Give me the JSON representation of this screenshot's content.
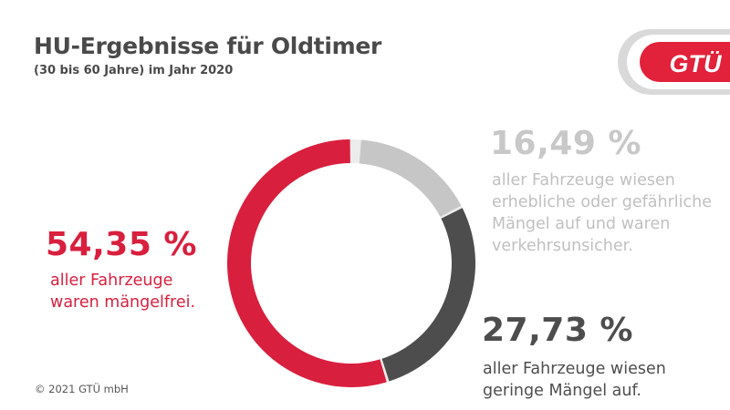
{
  "header": {
    "title": "HU-Ergebnisse für Oldtimer",
    "subtitle": "(30 bis 60 Jahre) im Jahr 2020"
  },
  "logo": {
    "text": "GTÜ"
  },
  "chart_data": {
    "type": "pie",
    "style": "donut",
    "title": "HU-Ergebnisse für Oldtimer",
    "subtitle": "(30 bis 60 Jahre) im Jahr 2020",
    "unit": "%",
    "slices": [
      {
        "value": 16.49,
        "label": "16,49 %",
        "color": "#c6c6c6",
        "description": [
          "aller Fahrzeuge wiesen",
          "erhebliche oder gefährliche",
          "Mängel auf und waren",
          "verkehrsunsicher."
        ]
      },
      {
        "value": 27.73,
        "label": "27,73 %",
        "color": "#4d4d4d",
        "description": [
          "aller Fahrzeuge wiesen",
          "geringe Mängel auf."
        ]
      },
      {
        "value": 54.35,
        "label": "54,35 %",
        "color": "#d91f3e",
        "description": [
          "aller Fahrzeuge",
          "waren mängelfrei."
        ]
      }
    ]
  },
  "footer": {
    "copyright": "© 2021 GTÜ mbH"
  }
}
